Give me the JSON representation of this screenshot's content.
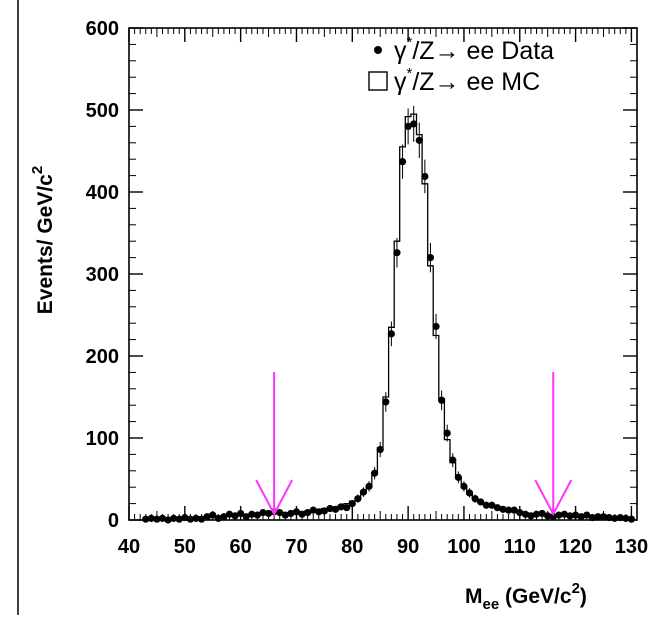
{
  "chart_data": {
    "type": "scatter",
    "xlabel": "M",
    "xlabel_sub": "ee",
    "xlabel_unit": "(GeV/c",
    "xlabel_unit_sup": "2",
    "xlabel_unit_close": ")",
    "ylabel": "Events/ GeV/c",
    "ylabel_sup": "2",
    "xlim": [
      40,
      131
    ],
    "ylim": [
      0,
      600
    ],
    "x_ticks": [
      40,
      50,
      60,
      70,
      80,
      90,
      100,
      110,
      120,
      130
    ],
    "y_ticks": [
      0,
      100,
      200,
      300,
      400,
      500,
      600
    ],
    "grid": false,
    "legend_position": "top-right",
    "legend": [
      {
        "marker": "dot",
        "prefix": "γ",
        "sup": "*",
        "suffix": "/Z→ ee Data"
      },
      {
        "marker": "open-box",
        "prefix": "γ",
        "sup": "*",
        "suffix": "/Z→ ee  MC"
      }
    ],
    "annotations": {
      "arrow_color": "#ff33ff",
      "cut_arrows_x": [
        66,
        116
      ]
    },
    "series": [
      {
        "name": "γ*/Z→ ee Data",
        "style": "points",
        "x": [
          43,
          44,
          45,
          46,
          47,
          48,
          49,
          50,
          51,
          52,
          53,
          54,
          55,
          56,
          57,
          58,
          59,
          60,
          61,
          62,
          63,
          64,
          65,
          66,
          67,
          68,
          69,
          70,
          71,
          72,
          73,
          74,
          75,
          76,
          77,
          78,
          79,
          80,
          81,
          82,
          83,
          84,
          85,
          86,
          87,
          88,
          89,
          90,
          91,
          92,
          93,
          94,
          95,
          96,
          97,
          98,
          99,
          100,
          101,
          102,
          103,
          104,
          105,
          106,
          107,
          108,
          109,
          110,
          111,
          112,
          113,
          114,
          115,
          116,
          117,
          118,
          119,
          120,
          121,
          122,
          123,
          124,
          125,
          126,
          127,
          128,
          129,
          130
        ],
        "y": [
          1,
          2,
          1,
          2,
          0,
          2,
          1,
          3,
          1,
          2,
          1,
          4,
          6,
          2,
          4,
          7,
          5,
          8,
          4,
          7,
          6,
          9,
          8,
          10,
          9,
          6,
          8,
          10,
          7,
          9,
          12,
          10,
          11,
          14,
          13,
          16,
          15,
          20,
          26,
          34,
          41,
          57,
          86,
          144,
          227,
          326,
          437,
          480,
          483,
          463,
          419,
          320,
          236,
          146,
          106,
          73,
          52,
          41,
          33,
          26,
          22,
          18,
          18,
          15,
          13,
          12,
          12,
          9,
          7,
          5,
          7,
          8,
          5,
          4,
          6,
          7,
          5,
          6,
          4,
          6,
          3,
          4,
          4,
          3,
          2,
          3,
          2,
          1
        ]
      },
      {
        "name": "γ*/Z→ ee MC",
        "style": "histogram",
        "x": [
          43,
          44,
          45,
          46,
          47,
          48,
          49,
          50,
          51,
          52,
          53,
          54,
          55,
          56,
          57,
          58,
          59,
          60,
          61,
          62,
          63,
          64,
          65,
          66,
          67,
          68,
          69,
          70,
          71,
          72,
          73,
          74,
          75,
          76,
          77,
          78,
          79,
          80,
          81,
          82,
          83,
          84,
          85,
          86,
          87,
          88,
          89,
          90,
          91,
          92,
          93,
          94,
          95,
          96,
          97,
          98,
          99,
          100,
          101,
          102,
          103,
          104,
          105,
          106,
          107,
          108,
          109,
          110,
          111,
          112,
          113,
          114,
          115,
          116,
          117,
          118,
          119,
          120,
          121,
          122,
          123,
          124,
          125,
          126,
          127,
          128,
          129,
          130
        ],
        "y": [
          2,
          2,
          2,
          2,
          2,
          3,
          3,
          3,
          3,
          3,
          4,
          4,
          4,
          4,
          5,
          5,
          5,
          6,
          6,
          6,
          7,
          7,
          8,
          8,
          8,
          9,
          9,
          10,
          10,
          11,
          12,
          13,
          14,
          15,
          16,
          18,
          20,
          23,
          27,
          33,
          42,
          58,
          88,
          150,
          235,
          340,
          455,
          492,
          495,
          470,
          410,
          310,
          225,
          148,
          98,
          70,
          52,
          40,
          32,
          26,
          22,
          19,
          17,
          15,
          13,
          12,
          11,
          10,
          9,
          8,
          7,
          7,
          6,
          6,
          5,
          5,
          5,
          4,
          4,
          4,
          4,
          3,
          3,
          3,
          3,
          3,
          2,
          2
        ]
      }
    ]
  }
}
